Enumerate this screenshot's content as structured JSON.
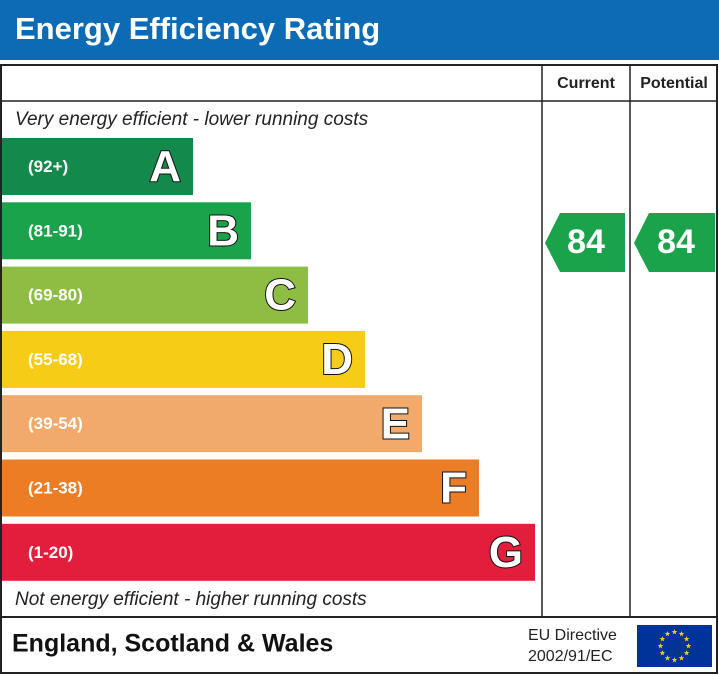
{
  "header": {
    "title": "Energy Efficiency Rating"
  },
  "table": {
    "columns": [
      "Current",
      "Potential"
    ],
    "top_note": "Very energy efficient - lower running costs",
    "bands": [
      {
        "range": "(92+)",
        "letter": "A"
      },
      {
        "range": "(81-91)",
        "letter": "B"
      },
      {
        "range": "(69-80)",
        "letter": "C"
      },
      {
        "range": "(55-68)",
        "letter": "D"
      },
      {
        "range": "(39-54)",
        "letter": "E"
      },
      {
        "range": "(21-38)",
        "letter": "F"
      },
      {
        "range": "(1-20)",
        "letter": "G"
      }
    ],
    "bottom_note": "Not energy efficient - higher running costs",
    "current": 84,
    "potential": 84
  },
  "footer": {
    "region": "England, Scotland & Wales",
    "directive": [
      "EU Directive",
      "2002/91/EC"
    ]
  }
}
